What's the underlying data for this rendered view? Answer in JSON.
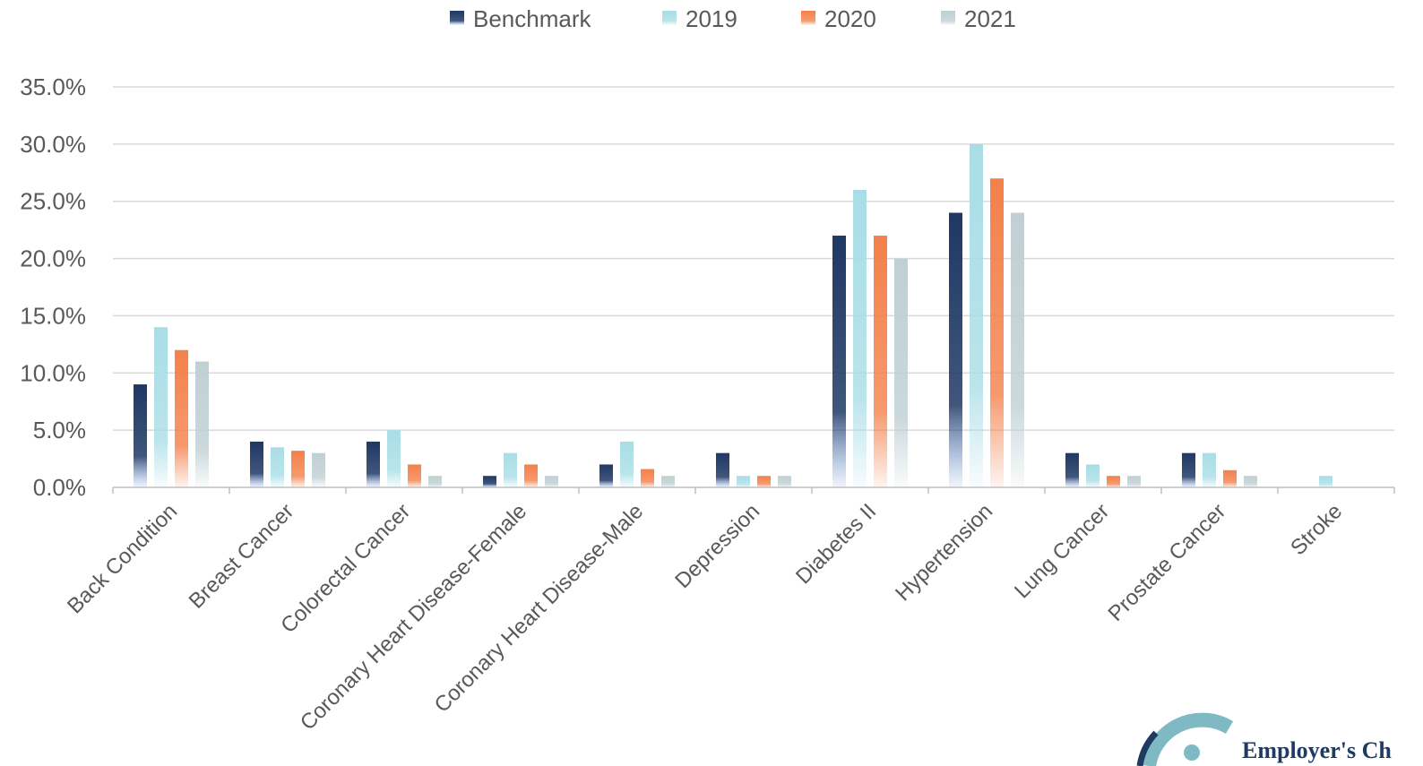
{
  "chart_data": {
    "type": "bar",
    "categories": [
      "Back Condition",
      "Breast Cancer",
      "Colorectal Cancer",
      "Coronary Heart Disease-Female",
      "Coronary Heart Disease-Male",
      "Depression",
      "Diabetes II",
      "Hypertension",
      "Lung Cancer",
      "Prostate Cancer",
      "Stroke"
    ],
    "series": [
      {
        "name": "Benchmark",
        "color": "#1f3864",
        "values": [
          9,
          4,
          4,
          1,
          2,
          3,
          22,
          24,
          3,
          3,
          0
        ]
      },
      {
        "name": "2019",
        "color": "#a9dde6",
        "values": [
          14,
          3.5,
          5,
          3,
          4,
          1,
          26,
          30,
          2,
          3,
          1
        ]
      },
      {
        "name": "2020",
        "color": "#f4804a",
        "values": [
          12,
          3.2,
          2,
          2,
          1.6,
          1,
          22,
          27,
          1,
          1.5,
          0
        ]
      },
      {
        "name": "2021",
        "color": "#bfcfd3",
        "values": [
          11,
          3,
          1,
          1,
          1,
          1,
          20,
          24,
          1,
          1,
          0
        ]
      }
    ],
    "ylim": [
      0,
      35
    ],
    "yticks": [
      "0.0%",
      "5.0%",
      "10.0%",
      "15.0%",
      "20.0%",
      "25.0%",
      "30.0%",
      "35.0%"
    ],
    "legend_position": "top-center",
    "grid": true
  },
  "logo": {
    "text": "Employer's Ch"
  }
}
